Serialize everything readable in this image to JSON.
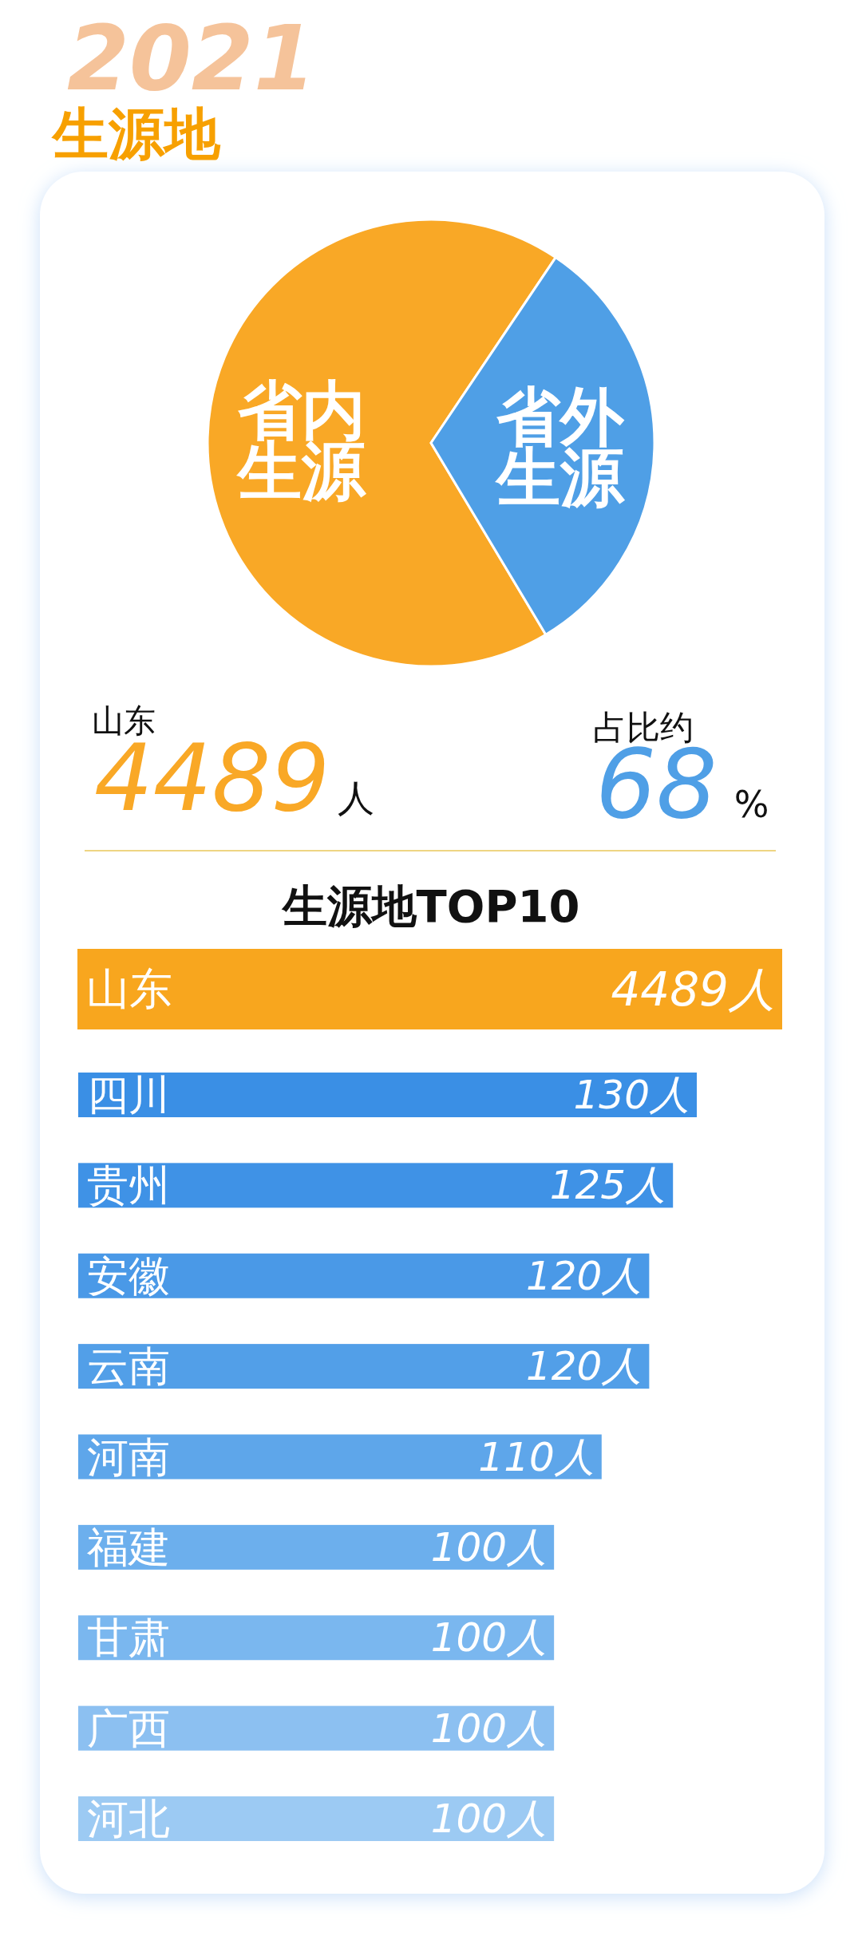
{
  "chart_data": [
    {
      "type": "pie",
      "title": "生源地",
      "subtitle": "2021",
      "categories": [
        "省内生源",
        "省外生源"
      ],
      "values": [
        68,
        32
      ],
      "colors": [
        "#f9a826",
        "#4f9fe6"
      ],
      "annotations": [
        "山东",
        "4489",
        "人",
        "占比约",
        "68",
        "%"
      ]
    },
    {
      "type": "bar",
      "orientation": "horizontal",
      "title": "生源地TOP10",
      "categories": [
        "山东"
      ],
      "values": [
        4489
      ],
      "value_labels": [
        "4489人"
      ],
      "colors": [
        "#f8a61e"
      ],
      "tick_labels": "y"
    },
    {
      "type": "bar",
      "orientation": "horizontal",
      "categories": [
        "四川",
        "贵州",
        "安徽",
        "云南",
        "河南",
        "福建",
        "甘肃",
        "广西",
        "河北"
      ],
      "values": [
        130,
        125,
        120,
        120,
        110,
        100,
        100,
        100,
        100
      ],
      "value_labels": [
        "130人",
        "125人",
        "120人",
        "120人",
        "110人",
        "100人",
        "100人",
        "100人",
        "100人"
      ],
      "colors": [
        "#3a8fe5",
        "#3f92e6",
        "#4a99e7",
        "#529fe8",
        "#5ea6ea",
        "#6cafed",
        "#7ab7ef",
        "#8cc0f1",
        "#9ccaf3"
      ],
      "tick_labels": "y"
    }
  ]
}
